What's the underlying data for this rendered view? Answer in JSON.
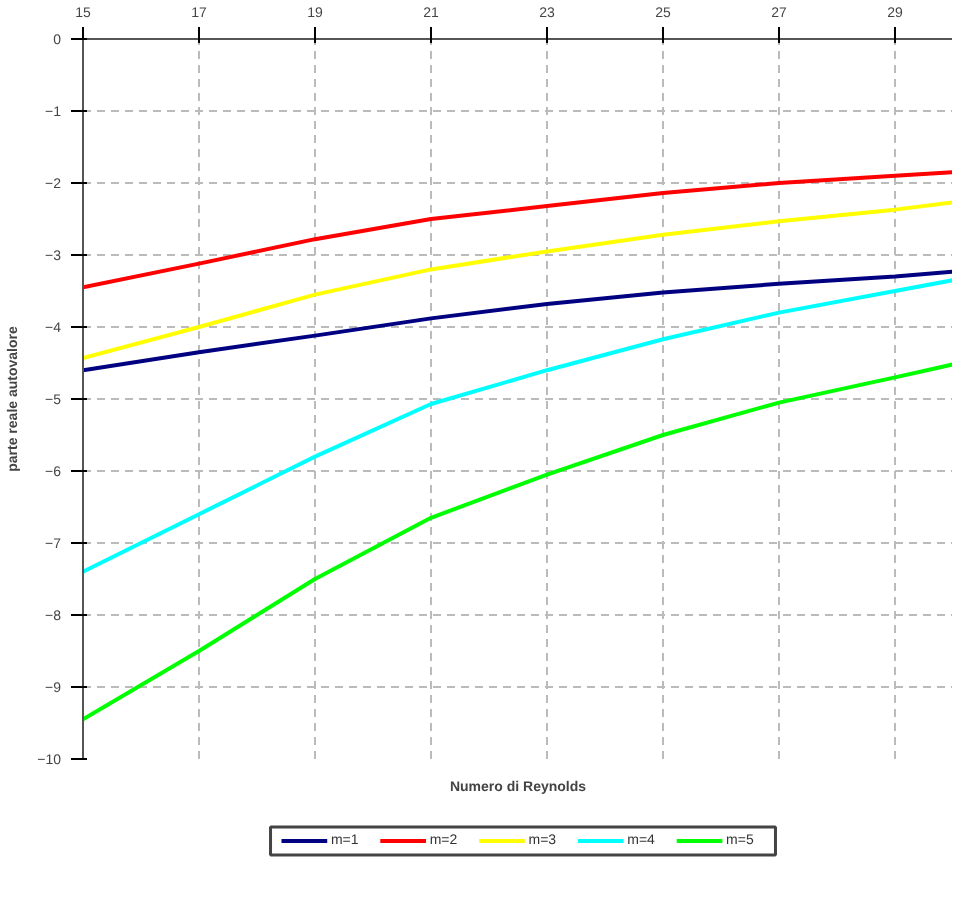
{
  "chart_data": {
    "type": "line",
    "xlabel": "Numero di Reynolds",
    "ylabel": "parte reale autovalore",
    "x": [
      15,
      17,
      19,
      21,
      23,
      25,
      27,
      29,
      30
    ],
    "xlim": [
      15,
      30
    ],
    "xticks": [
      15,
      17,
      19,
      21,
      23,
      25,
      27,
      29
    ],
    "ylim": [
      -10,
      0
    ],
    "yticks": [
      -10,
      -9,
      -8,
      -7,
      -6,
      -5,
      -4,
      -3,
      -2,
      -1,
      0
    ],
    "grid": true,
    "legend": "bottom",
    "line_style": "solid",
    "marker": "none",
    "series": [
      {
        "name": "m=1",
        "color": "#000080",
        "values": [
          -4.6,
          -4.35,
          -4.12,
          -3.88,
          -3.68,
          -3.52,
          -3.4,
          -3.3,
          -3.23
        ]
      },
      {
        "name": "m=2",
        "color": "#ff0000",
        "values": [
          -3.45,
          -3.12,
          -2.78,
          -2.5,
          -2.32,
          -2.14,
          -2.0,
          -1.9,
          -1.85
        ]
      },
      {
        "name": "m=3",
        "color": "#ffff00",
        "values": [
          -4.43,
          -4.0,
          -3.55,
          -3.2,
          -2.95,
          -2.72,
          -2.53,
          -2.37,
          -2.27
        ]
      },
      {
        "name": "m=4",
        "color": "#00ffff",
        "values": [
          -7.4,
          -6.6,
          -5.8,
          -5.07,
          -4.6,
          -4.17,
          -3.8,
          -3.5,
          -3.35
        ]
      },
      {
        "name": "m=5",
        "color": "#00ff00",
        "values": [
          -9.45,
          -8.5,
          -7.5,
          -6.65,
          -6.05,
          -5.5,
          -5.05,
          -4.7,
          -4.52
        ]
      }
    ]
  }
}
